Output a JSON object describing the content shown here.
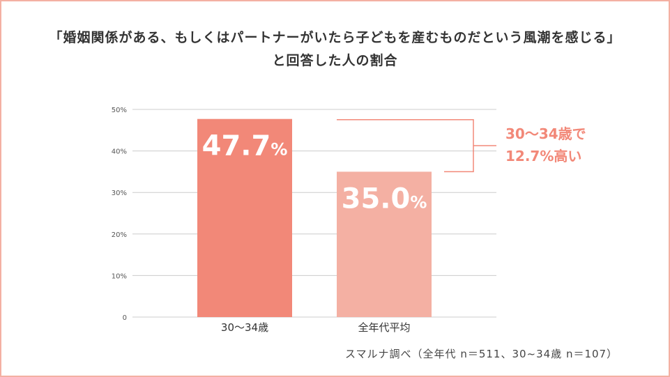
{
  "title": {
    "line1": "「婚姻関係がある、もしくはパートナーがいたら子どもを産むものだという風潮を感じる」",
    "line2": "と回答した人の割合"
  },
  "colors": {
    "border": "#f4b0a3",
    "bar_primary": "#f28878",
    "bar_secondary": "#f4b0a3",
    "annotation": "#f28878",
    "grid": "#cccccc",
    "axis_text": "#555555"
  },
  "chart_data": {
    "type": "bar",
    "categories": [
      "30〜34歳",
      "全年代平均"
    ],
    "values": [
      47.7,
      35.0
    ],
    "value_labels": [
      "47.7",
      "35.0"
    ],
    "value_suffix": "%",
    "ylim": [
      0,
      50
    ],
    "yticks": [
      0,
      10,
      20,
      30,
      40,
      50
    ],
    "ytick_labels": [
      "0",
      "10%",
      "20%",
      "30%",
      "40%",
      "50%"
    ],
    "grid": true,
    "annotation": {
      "line1": "30〜34歳で",
      "line2": "12.7%高い"
    }
  },
  "source": "スマルナ調べ（全年代 n＝511、30~34歳 n＝107）"
}
